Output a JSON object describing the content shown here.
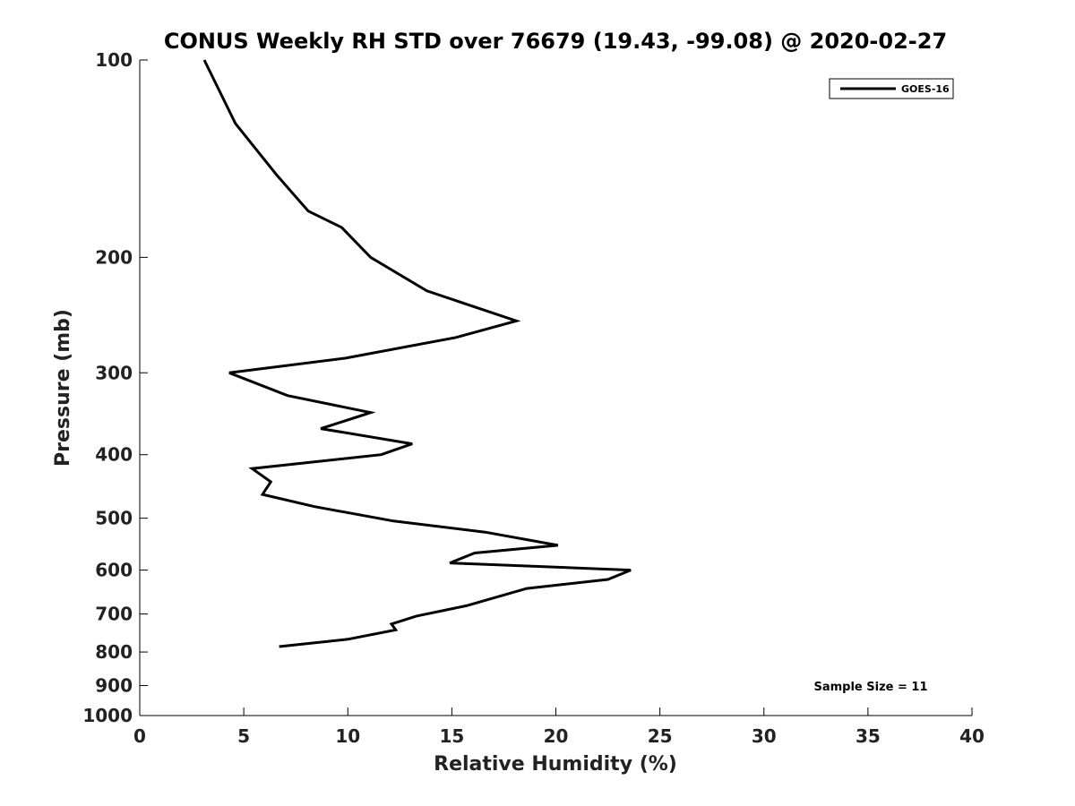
{
  "chart_data": {
    "type": "line",
    "title": "CONUS Weekly RH STD over 76679 (19.43, -99.08) @ 2020-02-27",
    "xlabel": "Relative Humidity (%)",
    "ylabel": "Pressure (mb)",
    "xlim": [
      0,
      40
    ],
    "ylim": [
      100,
      1000
    ],
    "y_scale": "log",
    "y_reversed": true,
    "x_ticks": [
      0,
      5,
      10,
      15,
      20,
      25,
      30,
      35,
      40
    ],
    "y_ticks": [
      100,
      200,
      300,
      400,
      500,
      600,
      700,
      800,
      900,
      1000
    ],
    "grid": false,
    "legend_position": "top-right",
    "annotation": "Sample Size = 11",
    "series": [
      {
        "name": "GOES-16",
        "color": "#000000",
        "points": [
          {
            "rh": 3.1,
            "p": 100
          },
          {
            "rh": 4.6,
            "p": 125
          },
          {
            "rh": 6.6,
            "p": 150
          },
          {
            "rh": 8.1,
            "p": 170
          },
          {
            "rh": 9.7,
            "p": 180
          },
          {
            "rh": 11.1,
            "p": 200
          },
          {
            "rh": 13.8,
            "p": 225
          },
          {
            "rh": 18.1,
            "p": 250
          },
          {
            "rh": 15.2,
            "p": 265
          },
          {
            "rh": 9.9,
            "p": 285
          },
          {
            "rh": 4.3,
            "p": 300
          },
          {
            "rh": 7.1,
            "p": 325
          },
          {
            "rh": 11.1,
            "p": 345
          },
          {
            "rh": 8.7,
            "p": 365
          },
          {
            "rh": 13.1,
            "p": 385
          },
          {
            "rh": 11.6,
            "p": 400
          },
          {
            "rh": 5.4,
            "p": 420
          },
          {
            "rh": 6.3,
            "p": 440
          },
          {
            "rh": 5.9,
            "p": 460
          },
          {
            "rh": 8.4,
            "p": 480
          },
          {
            "rh": 12.2,
            "p": 505
          },
          {
            "rh": 16.6,
            "p": 525
          },
          {
            "rh": 20.1,
            "p": 550
          },
          {
            "rh": 16.1,
            "p": 565
          },
          {
            "rh": 14.9,
            "p": 585
          },
          {
            "rh": 23.6,
            "p": 600
          },
          {
            "rh": 22.5,
            "p": 620
          },
          {
            "rh": 18.6,
            "p": 640
          },
          {
            "rh": 15.7,
            "p": 680
          },
          {
            "rh": 13.3,
            "p": 705
          },
          {
            "rh": 12.1,
            "p": 725
          },
          {
            "rh": 12.3,
            "p": 740
          },
          {
            "rh": 10.0,
            "p": 765
          },
          {
            "rh": 6.7,
            "p": 785
          }
        ]
      }
    ]
  }
}
